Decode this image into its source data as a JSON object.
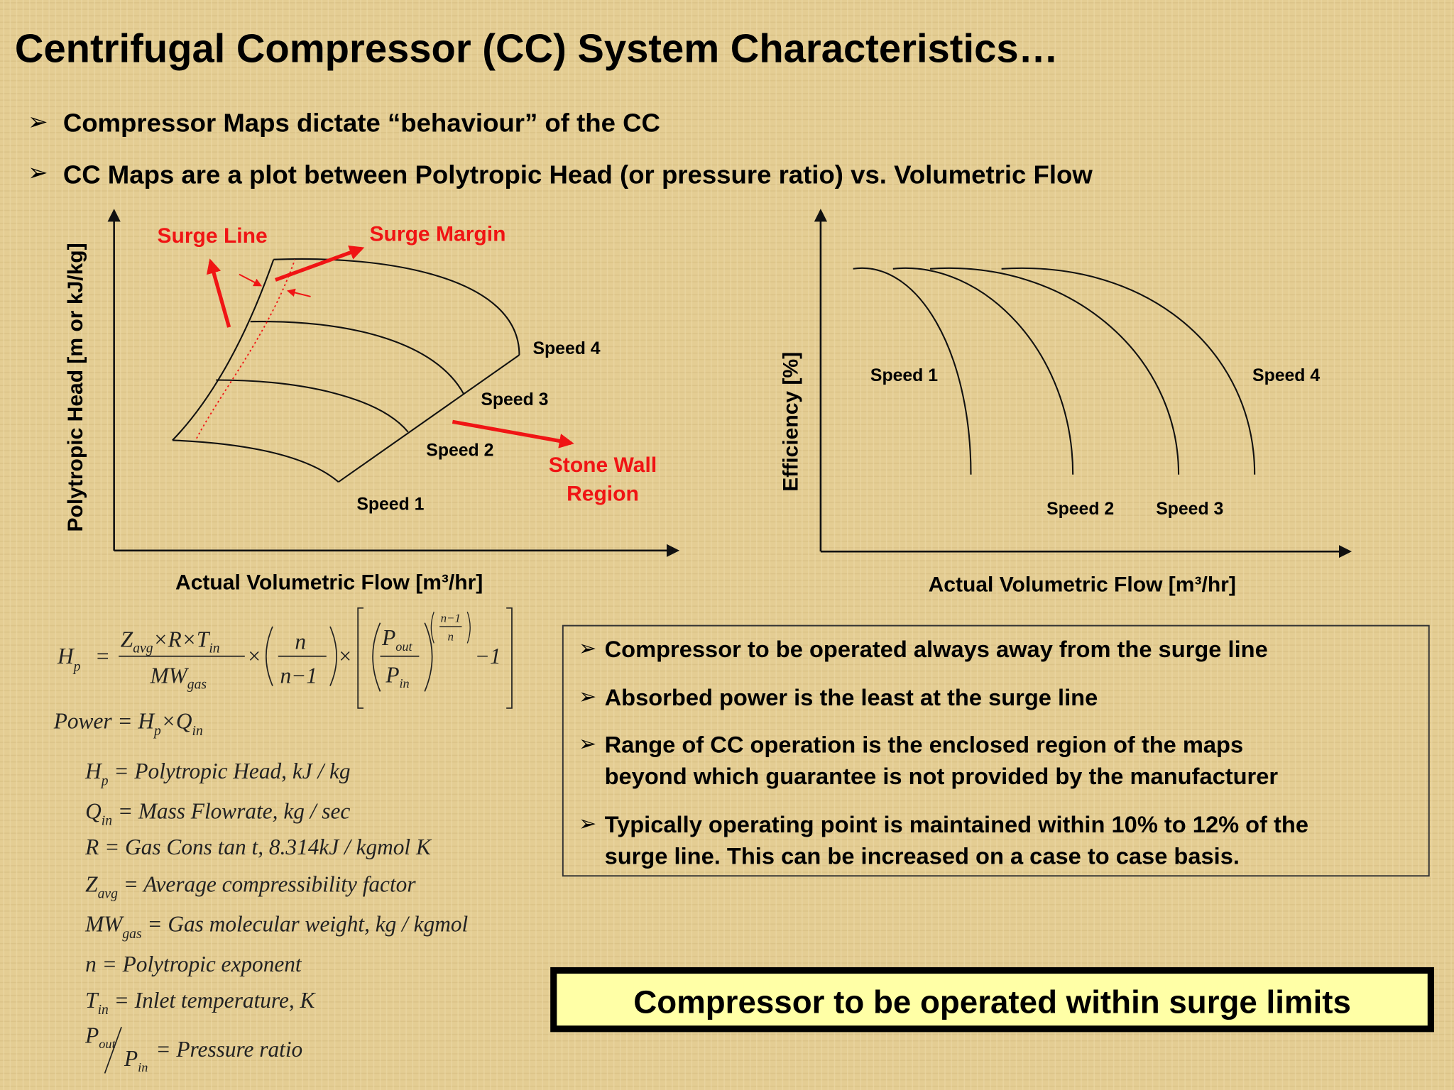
{
  "header": {
    "title": "Centrifugal Compressor (CC) System Characteristics…"
  },
  "bullets": [
    "Compressor Maps dictate “behaviour” of the CC",
    "CC Maps are a plot between Polytropic Head (or pressure ratio) vs. Volumetric Flow"
  ],
  "head_map": {
    "y_label": "Polytropic Head [m or kJ/kg]",
    "x_label": "Actual Volumetric Flow [m³/hr]",
    "surge_line": "Surge Line",
    "surge_margin": "Surge Margin",
    "stone_wall": [
      "Stone Wall",
      "Region"
    ],
    "speeds": [
      "Speed 1",
      "Speed 2",
      "Speed 3",
      "Speed 4"
    ]
  },
  "efficiency_map": {
    "y_label": "Efficiency [%]",
    "x_label": "Actual Volumetric Flow [m³/hr]",
    "speeds": [
      "Speed 1",
      "Speed 2",
      "Speed 3",
      "Speed 4"
    ]
  },
  "formulas": {
    "head": {
      "h": "H",
      "h_sub": "p",
      "equals": "=",
      "num": "Z",
      "num_sub1": "avg",
      "num_mid": "×R×T",
      "num_sub2": "in",
      "den": "MW",
      "den_sub": "gas",
      "times1": "×",
      "n_num": "n",
      "n_den": "n−1",
      "times2": "×",
      "p_num": "P",
      "p_num_sub": "out",
      "p_den": "P",
      "p_den_sub": "in",
      "exp_num": "n−1",
      "exp_den": "n",
      "minus_one": "−1"
    },
    "power": {
      "lhs": "Power = H",
      "h_sub": "p",
      "times": "×Q",
      "q_sub": "in"
    },
    "definitions": [
      {
        "symbol": "H",
        "sub": "p",
        "text": "= Polytropic  Head, kJ / kg"
      },
      {
        "symbol": "Q",
        "sub": "in",
        "text": "= Mass Flowrate, kg / sec"
      },
      {
        "symbol": "R",
        "text": "= Gas  Cons tan t,  8.314kJ / kgmol K"
      },
      {
        "symbol": "Z",
        "sub": "avg",
        "text": "= Average compressibility  factor"
      },
      {
        "symbol": "MW",
        "sub": "gas",
        "text": "= Gas molecular  weight, kg / kgmol"
      },
      {
        "symbol": "n",
        "text": "= Polytropic  exponent"
      },
      {
        "symbol": "T",
        "sub": "in",
        "text": "= Inlet  temperature, K"
      }
    ],
    "ratio": {
      "num": "P",
      "num_sub": "out",
      "den": "P",
      "den_sub": "in",
      "text": "= Pressure ratio"
    }
  },
  "notes": [
    [
      "Compressor to be operated always away from the surge line"
    ],
    [
      "Absorbed power is the least at the surge line"
    ],
    [
      "Range of CC operation is the enclosed region of the maps",
      "beyond which guarantee is not provided by the manufacturer"
    ],
    [
      "Typically operating point is maintained within 10% to 12% of the",
      "surge line. This can be increased on a case to case basis."
    ]
  ],
  "banner": "Compressor to be operated within surge limits"
}
